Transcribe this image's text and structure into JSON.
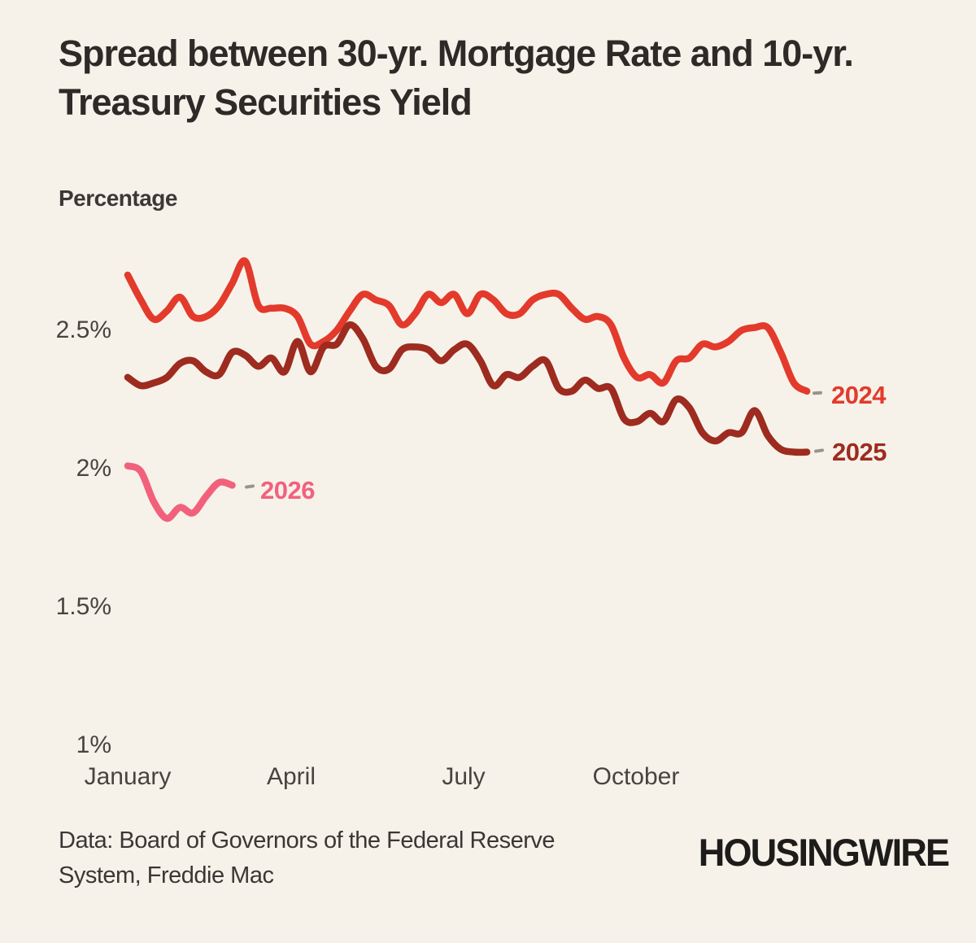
{
  "page": {
    "title_line1": "Spread between 30-yr. Mortgage Rate and 10-yr.",
    "title_line2": "Treasury Securities Yield",
    "source_line1": "Data: Board of Governors of the Federal Reserve",
    "source_line2": "System, Freddie Mac",
    "logo_text": "HOUSINGWIRE",
    "background_color": "#F6F2EA"
  },
  "chart_data": {
    "type": "line",
    "title": "Spread between 30-yr. Mortgage Rate and 10-yr. Treasury Securities Yield",
    "ylabel": "Percentage",
    "xlabel": "",
    "y_ticks": [
      "2.5%",
      "2%",
      "1.5%",
      "1%"
    ],
    "y_tick_values": [
      2.5,
      2.0,
      1.5,
      1.0
    ],
    "x_ticks": [
      "January",
      "April",
      "July",
      "October"
    ],
    "x_unit": "weekly, January through December",
    "ylim": [
      1.0,
      2.85
    ],
    "grid": false,
    "legend_position": "end-of-line labels",
    "series": [
      {
        "name": "2024",
        "color": "#E33A2C",
        "values": [
          2.7,
          2.61,
          2.54,
          2.57,
          2.62,
          2.55,
          2.55,
          2.59,
          2.67,
          2.75,
          2.59,
          2.58,
          2.58,
          2.55,
          2.45,
          2.46,
          2.5,
          2.57,
          2.63,
          2.61,
          2.59,
          2.52,
          2.56,
          2.63,
          2.6,
          2.63,
          2.56,
          2.63,
          2.61,
          2.56,
          2.56,
          2.61,
          2.63,
          2.63,
          2.58,
          2.54,
          2.55,
          2.52,
          2.4,
          2.33,
          2.34,
          2.31,
          2.39,
          2.4,
          2.45,
          2.44,
          2.46,
          2.5,
          2.51,
          2.51,
          2.42,
          2.31,
          2.28
        ]
      },
      {
        "name": "2025",
        "color": "#9E2B1F",
        "values": [
          2.33,
          2.3,
          2.31,
          2.33,
          2.38,
          2.39,
          2.35,
          2.34,
          2.42,
          2.41,
          2.37,
          2.4,
          2.35,
          2.46,
          2.35,
          2.44,
          2.45,
          2.52,
          2.47,
          2.37,
          2.36,
          2.43,
          2.44,
          2.43,
          2.39,
          2.43,
          2.45,
          2.39,
          2.3,
          2.34,
          2.33,
          2.37,
          2.39,
          2.29,
          2.28,
          2.32,
          2.29,
          2.29,
          2.18,
          2.17,
          2.2,
          2.17,
          2.25,
          2.22,
          2.13,
          2.1,
          2.13,
          2.13,
          2.21,
          2.12,
          2.07,
          2.06,
          2.06
        ]
      },
      {
        "name": "2026",
        "color": "#F2617C",
        "values": [
          2.01,
          1.99,
          1.88,
          1.82,
          1.86,
          1.84,
          1.9,
          1.95,
          1.94
        ]
      }
    ]
  }
}
